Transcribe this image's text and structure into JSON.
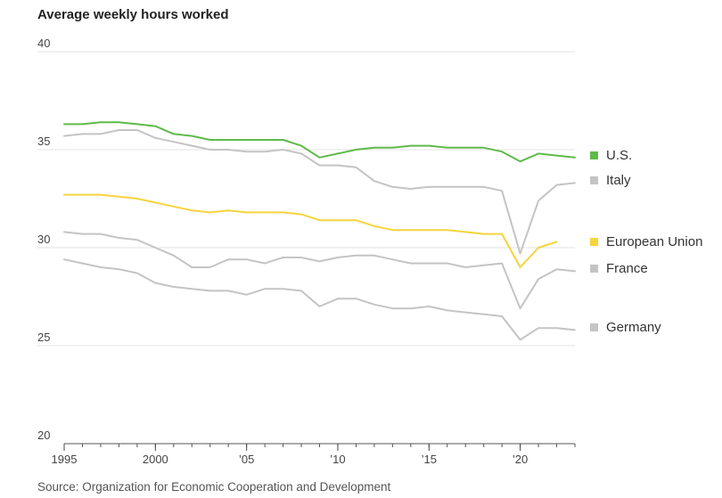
{
  "title": "Average weekly hours worked",
  "source": "Source: Organization for Economic Cooperation and Development",
  "chart_data": {
    "type": "line",
    "title": "Average weekly hours worked",
    "ylim": [
      20,
      40
    ],
    "y_ticks": [
      40,
      35,
      30,
      25,
      20
    ],
    "xlim": [
      1995,
      2023
    ],
    "x_ticks": [
      {
        "value": 1995,
        "label": "1995"
      },
      {
        "value": 2000,
        "label": "2000"
      },
      {
        "value": 2005,
        "label": "’05"
      },
      {
        "value": 2010,
        "label": "’10"
      },
      {
        "value": 2015,
        "label": "’15"
      },
      {
        "value": 2020,
        "label": "’20"
      }
    ],
    "grid": "horizontal",
    "legend_position": "right",
    "x": [
      1995,
      1996,
      1997,
      1998,
      1999,
      2000,
      2001,
      2002,
      2003,
      2004,
      2005,
      2006,
      2007,
      2008,
      2009,
      2010,
      2011,
      2012,
      2013,
      2014,
      2015,
      2016,
      2017,
      2018,
      2019,
      2020,
      2021,
      2022,
      2023
    ],
    "series": [
      {
        "name": "U.S.",
        "color": "#5fba4a",
        "values": [
          36.3,
          36.3,
          36.4,
          36.4,
          36.3,
          36.2,
          35.8,
          35.7,
          35.5,
          35.5,
          35.5,
          35.5,
          35.5,
          35.2,
          34.6,
          34.8,
          35.0,
          35.1,
          35.1,
          35.2,
          35.2,
          35.1,
          35.1,
          35.1,
          34.9,
          34.4,
          34.8,
          34.7,
          34.6
        ]
      },
      {
        "name": "Italy",
        "color": "#c4c4c4",
        "values": [
          35.7,
          35.8,
          35.8,
          36.0,
          36.0,
          35.6,
          35.4,
          35.2,
          35.0,
          35.0,
          34.9,
          34.9,
          35.0,
          34.8,
          34.2,
          34.2,
          34.1,
          33.4,
          33.1,
          33.0,
          33.1,
          33.1,
          33.1,
          33.1,
          32.9,
          29.7,
          32.4,
          33.2,
          33.3
        ]
      },
      {
        "name": "European Union",
        "color": "#f5d43c",
        "values": [
          32.7,
          32.7,
          32.7,
          32.6,
          32.5,
          32.3,
          32.1,
          31.9,
          31.8,
          31.9,
          31.8,
          31.8,
          31.8,
          31.7,
          31.4,
          31.4,
          31.4,
          31.1,
          30.9,
          30.9,
          30.9,
          30.9,
          30.8,
          30.7,
          30.7,
          29.0,
          30.0,
          30.3,
          null
        ]
      },
      {
        "name": "France",
        "color": "#c4c4c4",
        "values": [
          30.8,
          30.7,
          30.7,
          30.5,
          30.4,
          30.0,
          29.6,
          29.0,
          29.0,
          29.4,
          29.4,
          29.2,
          29.5,
          29.5,
          29.3,
          29.5,
          29.6,
          29.6,
          29.4,
          29.2,
          29.2,
          29.2,
          29.0,
          29.1,
          29.2,
          26.9,
          28.4,
          28.9,
          28.8
        ]
      },
      {
        "name": "Germany",
        "color": "#c4c4c4",
        "values": [
          29.4,
          29.2,
          29.0,
          28.9,
          28.7,
          28.2,
          28.0,
          27.9,
          27.8,
          27.8,
          27.6,
          27.9,
          27.9,
          27.8,
          27.0,
          27.4,
          27.4,
          27.1,
          26.9,
          26.9,
          27.0,
          26.8,
          26.7,
          26.6,
          26.5,
          25.3,
          25.9,
          25.9,
          25.8
        ]
      }
    ]
  }
}
